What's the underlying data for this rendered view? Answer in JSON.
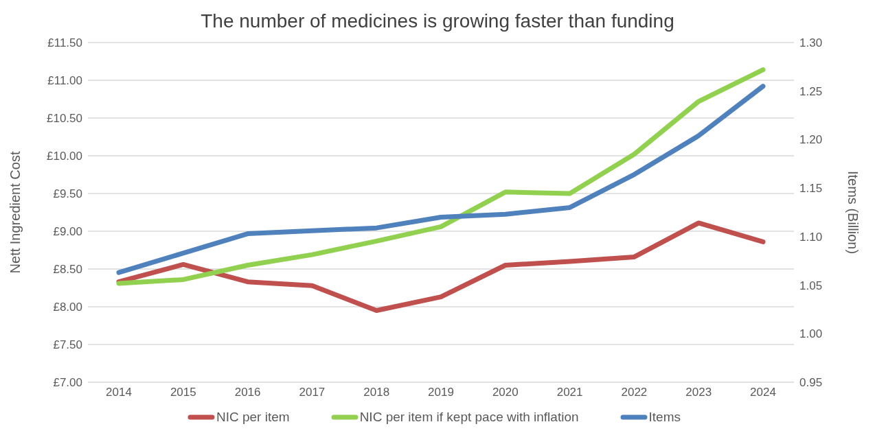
{
  "chart_data": {
    "type": "line",
    "title": "The number of medicines is growing faster than funding",
    "ylabel": "Nett Ingredient Cost",
    "y2label": "Items (Billion)",
    "categories": [
      "2014",
      "2015",
      "2016",
      "2017",
      "2018",
      "2019",
      "2020",
      "2021",
      "2022",
      "2023",
      "2024"
    ],
    "series": [
      {
        "name": "NIC per item",
        "color": "#c0504d",
        "values": [
          8.33,
          8.56,
          8.33,
          8.28,
          7.95,
          8.13,
          8.55,
          8.6,
          8.66,
          9.11,
          8.86
        ]
      },
      {
        "name": "NIC per item if kept pace with inflation",
        "color": "#92d050",
        "values": [
          8.31,
          8.36,
          8.55,
          8.69,
          8.87,
          9.06,
          9.52,
          9.5,
          10.02,
          10.72,
          11.14
        ]
      },
      {
        "name": "Items",
        "color": "#4f81bd",
        "axis": "y2",
        "values": [
          1.063,
          1.083,
          1.103,
          1.106,
          1.109,
          1.12,
          1.123,
          1.13,
          1.164,
          1.204,
          1.255
        ]
      }
    ],
    "ylim": [
      7,
      11.5
    ],
    "yticks": [
      {
        "value": 7,
        "label": "£7.00"
      },
      {
        "value": 7.5,
        "label": "£7.50"
      },
      {
        "value": 8,
        "label": "£8.00"
      },
      {
        "value": 8.5,
        "label": "£8.50"
      },
      {
        "value": 9,
        "label": "£9.00"
      },
      {
        "value": 9.5,
        "label": "£9.50"
      },
      {
        "value": 10,
        "label": "£10.00"
      },
      {
        "value": 10.5,
        "label": "£10.50"
      },
      {
        "value": 11,
        "label": "£11.00"
      },
      {
        "value": 11.5,
        "label": "£11.50"
      }
    ],
    "y2lim": [
      0.95,
      1.3
    ],
    "y2ticks": [
      {
        "value": 0.95,
        "label": "0.95"
      },
      {
        "value": 1,
        "label": "1.00"
      },
      {
        "value": 1.05,
        "label": "1.05"
      },
      {
        "value": 1.1,
        "label": "1.10"
      },
      {
        "value": 1.15,
        "label": "1.15"
      },
      {
        "value": 1.2,
        "label": "1.20"
      },
      {
        "value": 1.25,
        "label": "1.25"
      },
      {
        "value": 1.3,
        "label": "1.30"
      }
    ],
    "grid": "y",
    "legend": "bottom",
    "marker": "none",
    "line_style": "solid"
  }
}
